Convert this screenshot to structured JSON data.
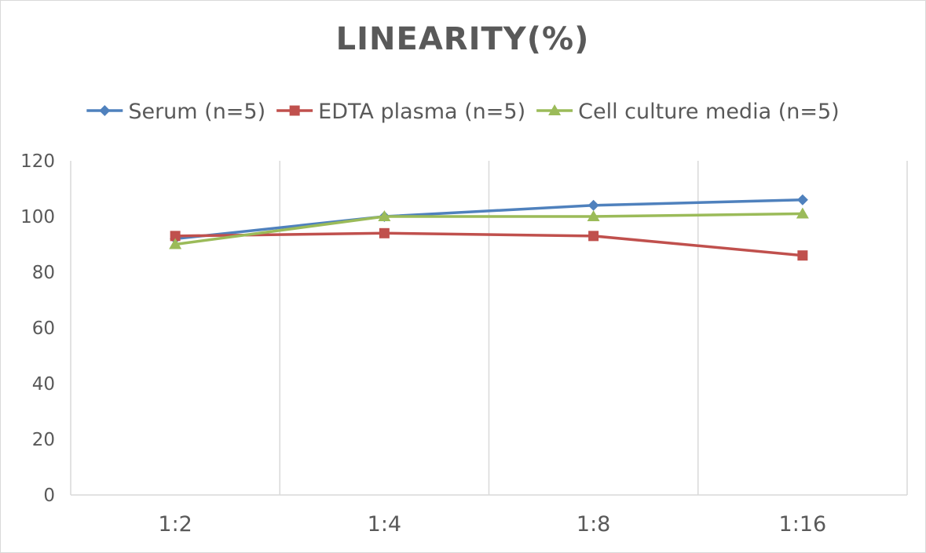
{
  "chart_data": {
    "type": "line",
    "title": "LINEARITY(%)",
    "xlabel": "",
    "ylabel": "",
    "categories": [
      "1:2",
      "1:4",
      "1:8",
      "1:16"
    ],
    "ylim": [
      0,
      120
    ],
    "yticks": [
      0,
      20,
      40,
      60,
      80,
      100,
      120
    ],
    "grid": "vertical",
    "legend_position": "top",
    "series": [
      {
        "name": "Serum (n=5)",
        "values": [
          92,
          100,
          104,
          106
        ],
        "color": "#4f81bd",
        "marker": "diamond"
      },
      {
        "name": "EDTA plasma (n=5)",
        "values": [
          93,
          94,
          93,
          86
        ],
        "color": "#c0504d",
        "marker": "square"
      },
      {
        "name": "Cell culture media (n=5)",
        "values": [
          90,
          100,
          100,
          101
        ],
        "color": "#9bbb59",
        "marker": "triangle"
      }
    ]
  }
}
